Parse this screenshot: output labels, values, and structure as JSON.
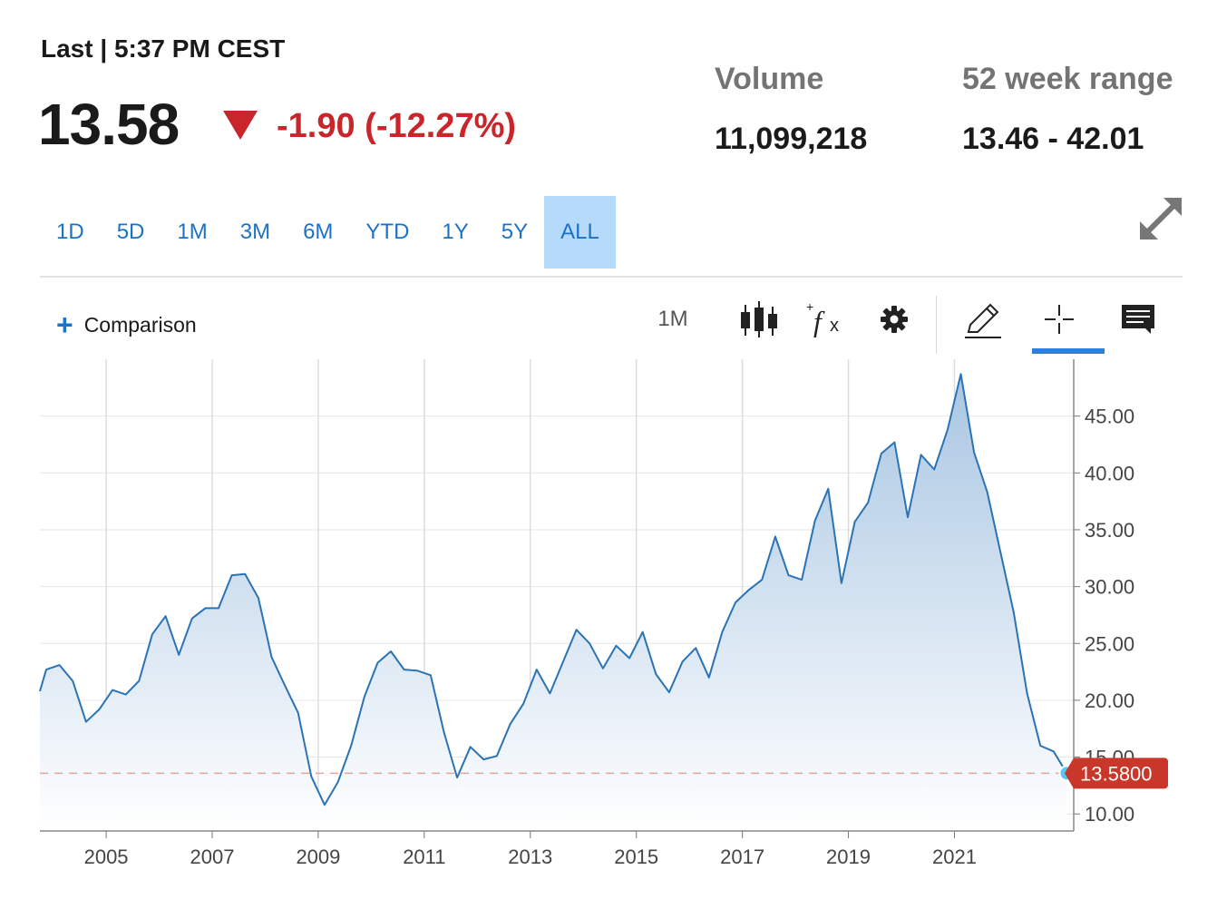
{
  "quote": {
    "label": "Last | 5:37 PM CEST",
    "price": "13.58",
    "change": "-1.90 (-12.27%)",
    "direction": "down",
    "down_color": "#c8262a"
  },
  "stats": {
    "volume_label": "Volume",
    "volume_value": "11,099,218",
    "range_label": "52 week range",
    "range_value": "13.46 - 42.01"
  },
  "range_tabs": [
    {
      "label": "1D",
      "active": false
    },
    {
      "label": "5D",
      "active": false
    },
    {
      "label": "1M",
      "active": false
    },
    {
      "label": "3M",
      "active": false
    },
    {
      "label": "6M",
      "active": false
    },
    {
      "label": "YTD",
      "active": false
    },
    {
      "label": "1Y",
      "active": false
    },
    {
      "label": "5Y",
      "active": false
    },
    {
      "label": "ALL",
      "active": true
    }
  ],
  "toolbar": {
    "comparison_label": "Comparison",
    "interval_label": "1M",
    "icons": [
      "candlestick-icon",
      "function-icon",
      "gear-icon",
      "pencil-icon",
      "crosshair-icon",
      "comment-icon",
      "expand-icon"
    ],
    "active_tool": "crosshair-icon",
    "accent_color": "#1d72c5"
  },
  "chart_data": {
    "type": "area",
    "x_ticks": [
      "2005",
      "2007",
      "2009",
      "2011",
      "2013",
      "2015",
      "2017",
      "2019",
      "2021"
    ],
    "y_ticks": [
      "10.00",
      "15.00",
      "20.00",
      "25.00",
      "30.00",
      "35.00",
      "40.00",
      "45.00"
    ],
    "ylim": [
      8.5,
      50
    ],
    "xlim": [
      2003.75,
      2023.25
    ],
    "grid": true,
    "line_color": "#2a73b5",
    "last_value_label": "13.5800",
    "last_value": 13.58,
    "last_value_color": "#c8372a",
    "series": [
      {
        "x": [
          2003.75,
          2003.87,
          2004.12,
          2004.37,
          2004.62,
          2004.87,
          2005.12,
          2005.37,
          2005.62,
          2005.87,
          2006.12,
          2006.37,
          2006.62,
          2006.87,
          2007.12,
          2007.37,
          2007.62,
          2007.87,
          2008.12,
          2008.37,
          2008.62,
          2008.87,
          2009.12,
          2009.37,
          2009.62,
          2009.87,
          2010.12,
          2010.37,
          2010.62,
          2010.87,
          2011.12,
          2011.37,
          2011.62,
          2011.87,
          2012.12,
          2012.37,
          2012.62,
          2012.87,
          2013.12,
          2013.37,
          2013.62,
          2013.87,
          2014.12,
          2014.37,
          2014.62,
          2014.87,
          2015.12,
          2015.37,
          2015.62,
          2015.87,
          2016.12,
          2016.37,
          2016.62,
          2016.87,
          2017.12,
          2017.37,
          2017.62,
          2017.87,
          2018.12,
          2018.37,
          2018.62,
          2018.87,
          2019.12,
          2019.37,
          2019.62,
          2019.87,
          2020.12,
          2020.37,
          2020.62,
          2020.87,
          2021.12,
          2021.37,
          2021.62,
          2021.87,
          2022.12,
          2022.37,
          2022.62,
          2022.87,
          2023.12
        ],
        "y": [
          20.8,
          22.7,
          23.1,
          21.7,
          18.1,
          19.2,
          20.9,
          20.5,
          21.7,
          25.8,
          27.4,
          24.0,
          27.2,
          28.1,
          28.1,
          31.0,
          31.1,
          29.0,
          23.8,
          21.3,
          18.9,
          13.3,
          10.8,
          12.8,
          16.0,
          20.3,
          23.3,
          24.3,
          22.7,
          22.6,
          22.2,
          17.2,
          13.2,
          15.9,
          14.8,
          15.1,
          17.9,
          19.7,
          22.7,
          20.6,
          23.4,
          26.2,
          25.0,
          22.8,
          24.8,
          23.7,
          26.0,
          22.3,
          20.7,
          23.4,
          24.6,
          22.0,
          26.0,
          28.6,
          29.7,
          30.6,
          34.4,
          31.0,
          30.6,
          35.8,
          38.6,
          30.3,
          35.7,
          37.4,
          41.7,
          42.7,
          36.1,
          41.6,
          40.3,
          43.8,
          48.7,
          41.8,
          38.3,
          33.0,
          27.7,
          20.6,
          16.0,
          15.5,
          13.58
        ]
      }
    ]
  }
}
